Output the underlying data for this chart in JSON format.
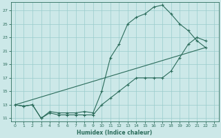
{
  "xlabel": "Humidex (Indice chaleur)",
  "background_color": "#cce8e8",
  "grid_color": "#99cccc",
  "line_color": "#2a6b5a",
  "xlim": [
    -0.5,
    23.5
  ],
  "ylim": [
    10.5,
    28.2
  ],
  "xticks": [
    0,
    1,
    2,
    3,
    4,
    5,
    6,
    7,
    8,
    9,
    10,
    11,
    12,
    13,
    14,
    15,
    16,
    17,
    18,
    19,
    20,
    21,
    22,
    23
  ],
  "yticks": [
    11,
    13,
    15,
    17,
    19,
    21,
    23,
    25,
    27
  ],
  "line1_x": [
    0,
    1,
    2,
    3,
    4,
    5,
    6,
    7,
    8,
    9,
    10,
    11,
    12,
    13,
    14,
    15,
    16,
    17,
    18,
    19,
    20,
    21,
    22
  ],
  "line1_y": [
    13,
    12.8,
    13,
    11,
    12,
    11.8,
    11.8,
    11.8,
    12,
    11.8,
    15,
    20,
    22,
    25,
    26,
    26.5,
    27.5,
    27.8,
    26.5,
    25,
    24,
    22.5,
    21.5
  ],
  "line2_x": [
    0,
    1,
    2,
    3,
    4,
    5,
    6,
    7,
    8,
    9,
    10,
    11,
    12,
    13,
    14,
    15,
    16,
    17,
    18,
    19,
    20,
    21,
    22
  ],
  "line2_y": [
    13,
    12.8,
    13,
    11,
    11.8,
    11.5,
    11.5,
    11.5,
    11.5,
    11.5,
    13,
    14,
    15,
    16,
    17,
    17,
    17,
    17,
    18,
    20,
    22,
    23,
    22.5
  ],
  "line3_x": [
    0,
    22
  ],
  "line3_y": [
    13,
    21.5
  ]
}
